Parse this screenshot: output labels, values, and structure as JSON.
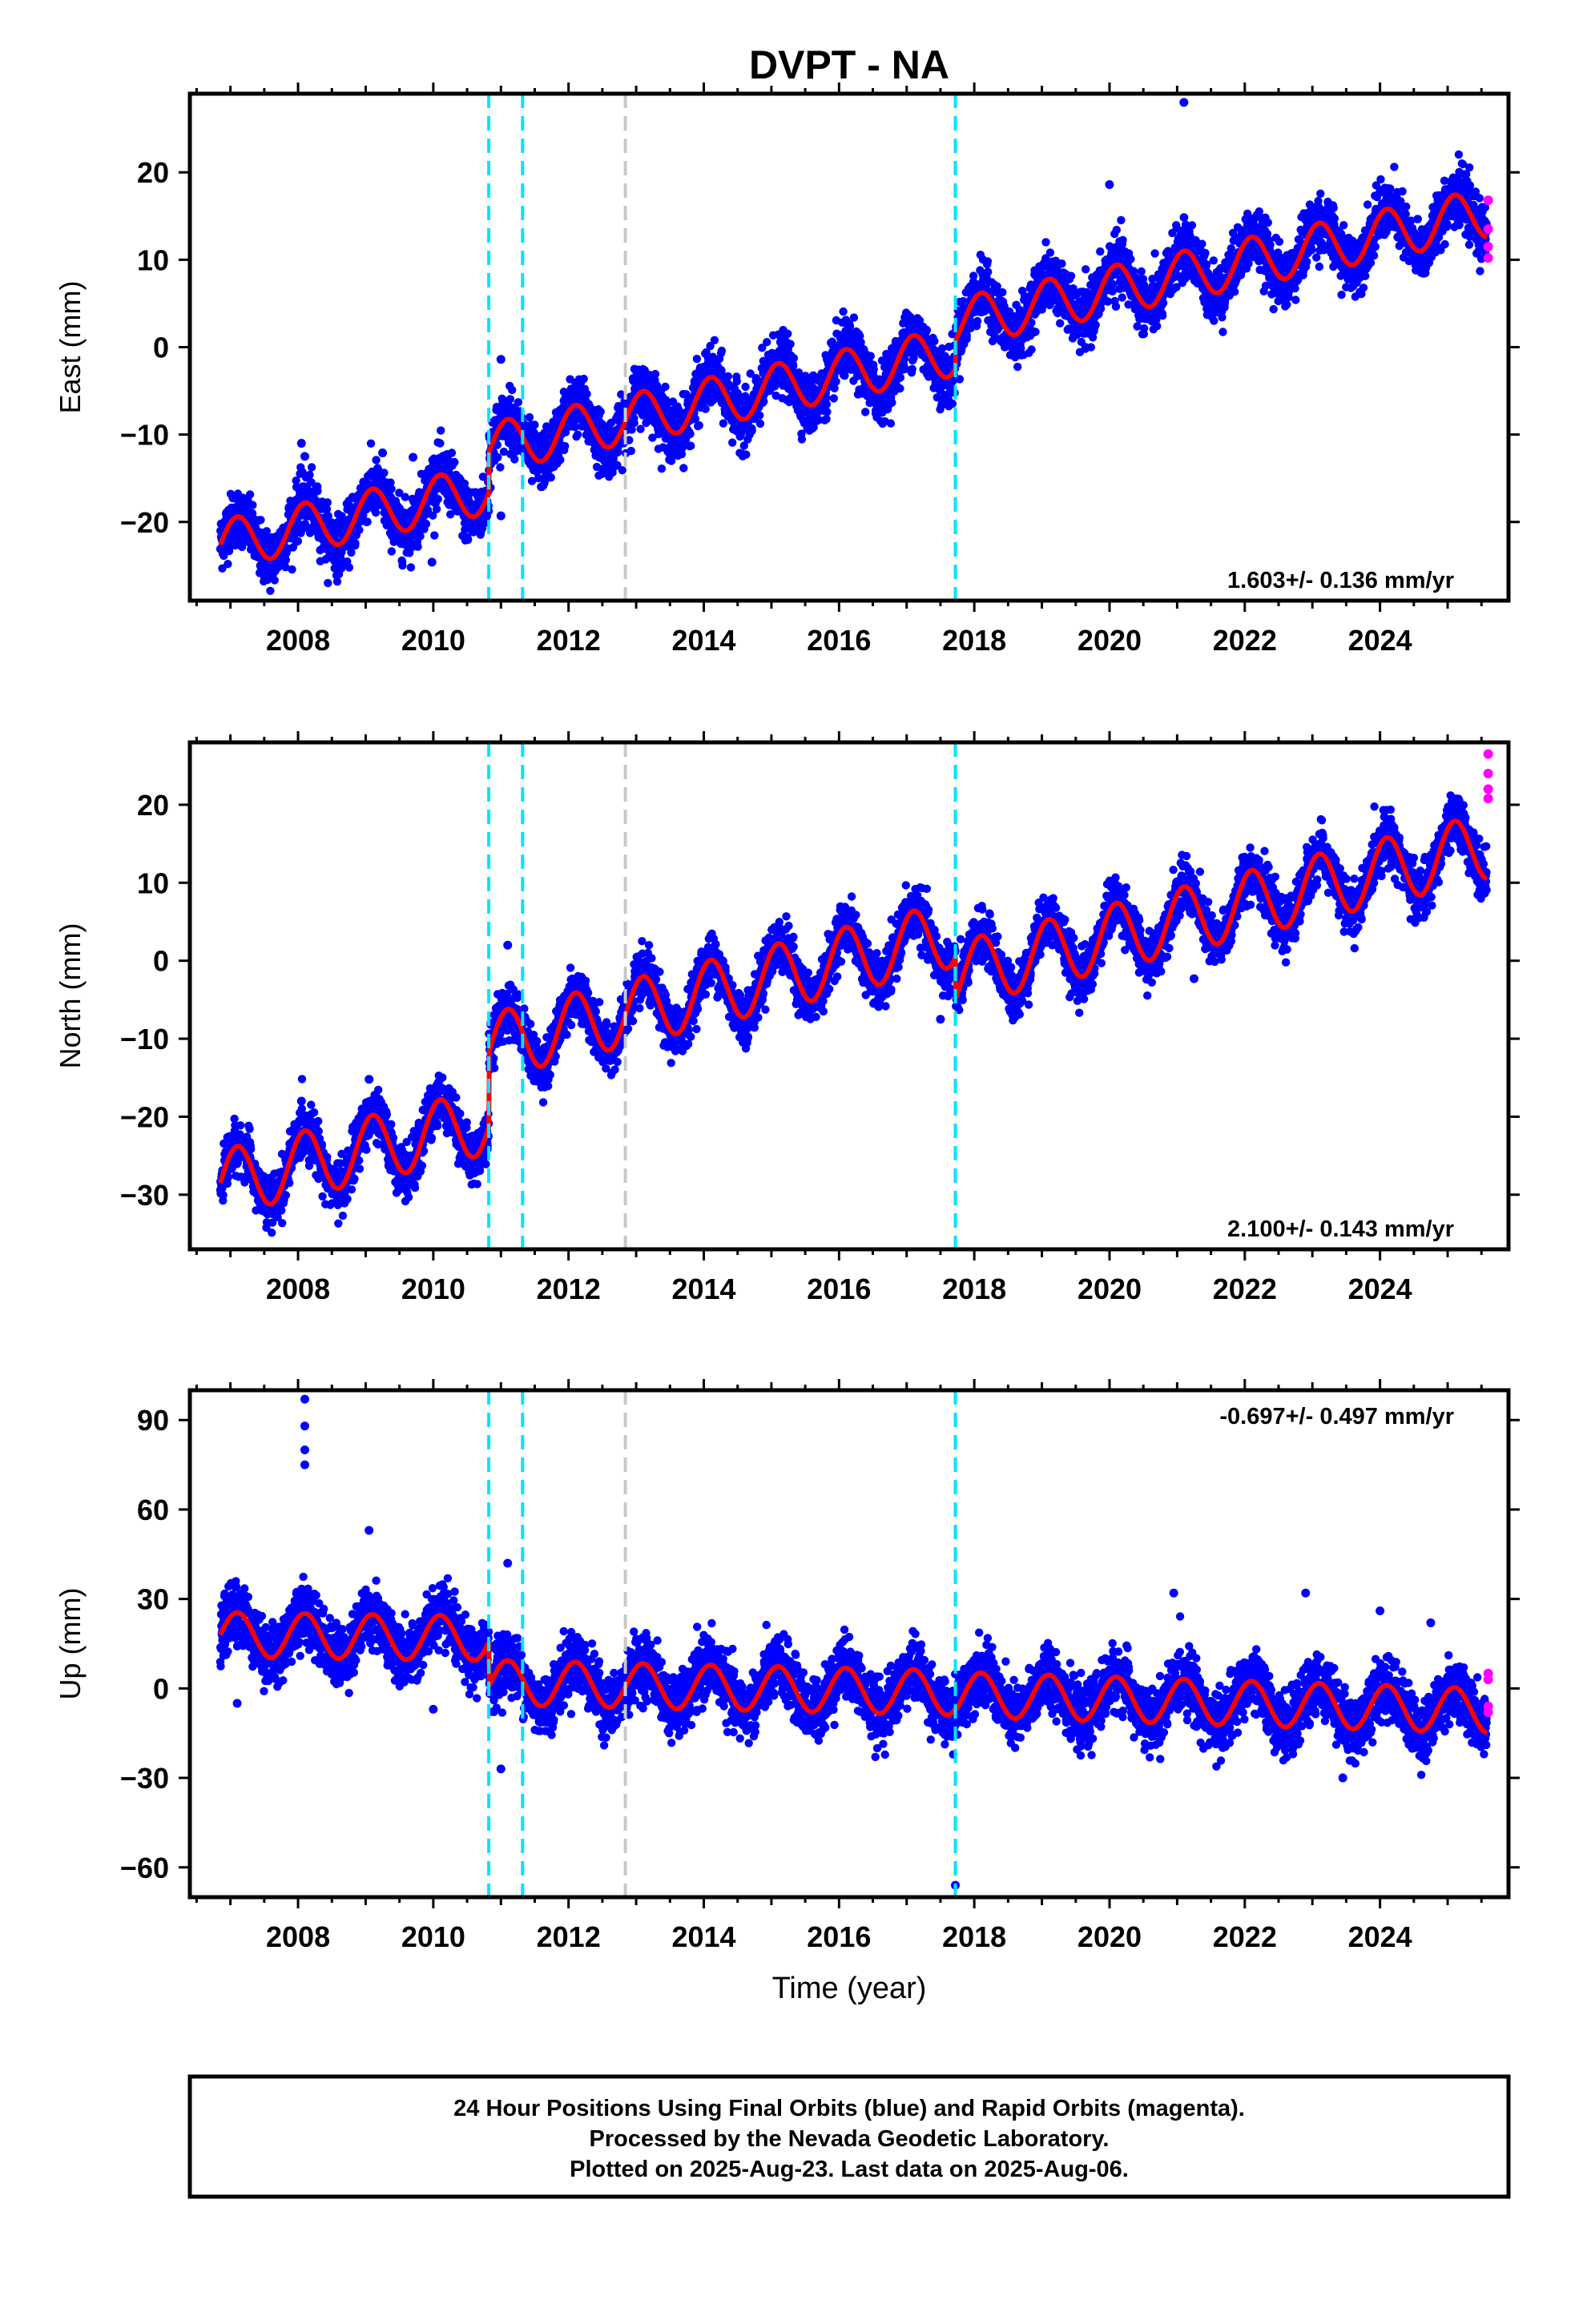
{
  "title": "DVPT - NA",
  "xlabel": "Time (year)",
  "colors": {
    "final_orbits": "#0000ff",
    "rapid_orbits": "#ff00ff",
    "model": "#ff0000",
    "equipment_change": "#00e5ff",
    "earthquake": "#c8c8c8",
    "frame": "#000000"
  },
  "footer": {
    "line1": "24 Hour Positions Using Final Orbits (blue) and Rapid Orbits (magenta).",
    "line2": "Processed by the Nevada Geodetic Laboratory.",
    "line3": "Plotted on 2025-Aug-23. Last data on 2025-Aug-06."
  },
  "chart_data": [
    {
      "type": "scatter",
      "ylabel": "East (mm)",
      "rate_label": "1.603+/- 0.136 mm/yr",
      "rate_position": "bottom-right",
      "xlim": [
        2006.4,
        2025.9
      ],
      "ylim": [
        -29,
        29
      ],
      "xticks": [
        2008,
        2010,
        2012,
        2014,
        2016,
        2018,
        2020,
        2022,
        2024
      ],
      "yticks": [
        -20,
        -10,
        0,
        10,
        20
      ],
      "xtick_labels": [
        "2008",
        "2010",
        "2012",
        "2014",
        "2016",
        "2018",
        "2020",
        "2022",
        "2024"
      ],
      "ytick_labels": [
        "−20",
        "−10",
        "0",
        "10",
        "20"
      ],
      "vlines_cyan": [
        2010.82,
        2011.32,
        2017.72
      ],
      "vlines_gray": [
        2012.84
      ],
      "model": {
        "steps": [
          {
            "t": 2010.82,
            "dy": 9.0
          },
          {
            "t": 2011.32,
            "dy": 0.0
          }
        ],
        "seasonal_amp": 2.8,
        "segments": [
          {
            "t0": 2006.85,
            "y0": -22.6,
            "rate": 1.6
          },
          {
            "t0": 2010.82,
            "y0": -11.5,
            "rate": 1.6
          },
          {
            "t0": 2017.72,
            "y0": 2.8,
            "rate": 1.6
          }
        ]
      },
      "final_orbits": {
        "t_start": 2006.85,
        "t_end": 2025.58,
        "noise": 1.6,
        "outliers": [
          [
            2008.05,
            -11.0
          ],
          [
            2008.1,
            -12.5
          ],
          [
            2009.25,
            -12.1
          ],
          [
            2009.7,
            -12.6
          ],
          [
            2009.98,
            -24.6
          ],
          [
            2011.0,
            -1.4
          ],
          [
            2011.0,
            -19.3
          ],
          [
            2020.0,
            18.6
          ],
          [
            2021.1,
            28.0
          ]
        ]
      },
      "rapid_orbits": {
        "points": [
          [
            2025.6,
            16.8
          ],
          [
            2025.6,
            13.5
          ],
          [
            2025.6,
            11.5
          ],
          [
            2025.6,
            10.2
          ]
        ]
      }
    },
    {
      "type": "scatter",
      "ylabel": "North (mm)",
      "rate_label": "2.100+/- 0.143 mm/yr",
      "rate_position": "bottom-right",
      "xlim": [
        2006.4,
        2025.9
      ],
      "ylim": [
        -37,
        28
      ],
      "xticks": [
        2008,
        2010,
        2012,
        2014,
        2016,
        2018,
        2020,
        2022,
        2024
      ],
      "yticks": [
        -30,
        -20,
        -10,
        0,
        10,
        20
      ],
      "xtick_labels": [
        "2008",
        "2010",
        "2012",
        "2014",
        "2016",
        "2018",
        "2020",
        "2022",
        "2024"
      ],
      "ytick_labels": [
        "−30",
        "−20",
        "−10",
        "0",
        "10",
        "20"
      ],
      "vlines_cyan": [
        2010.82,
        2011.32,
        2017.72
      ],
      "vlines_gray": [
        2012.84
      ],
      "model": {
        "seasonal_amp": 4.2,
        "segments": [
          {
            "t0": 2006.85,
            "y0": -28.5,
            "rate": 2.0
          },
          {
            "t0": 2010.82,
            "y0": -11.0,
            "rate": 2.1
          },
          {
            "t0": 2017.72,
            "y0": -1.8,
            "rate": 2.1
          }
        ]
      },
      "final_orbits": {
        "t_start": 2006.85,
        "t_end": 2025.58,
        "noise": 1.6,
        "outliers": [
          [
            2008.05,
            -18.0
          ],
          [
            2009.05,
            -15.2
          ],
          [
            2010.05,
            -16.0
          ],
          [
            2011.1,
            2.0
          ],
          [
            2017.5,
            -7.5
          ],
          [
            2021.25,
            -2.3
          ]
        ]
      },
      "rapid_orbits": {
        "points": [
          [
            2025.6,
            26.5
          ],
          [
            2025.6,
            24.0
          ],
          [
            2025.6,
            22.0
          ],
          [
            2025.6,
            20.8
          ]
        ]
      }
    },
    {
      "type": "scatter",
      "ylabel": "Up (mm)",
      "rate_label": "-0.697+/- 0.497 mm/yr",
      "rate_position": "top-right",
      "xlim": [
        2006.4,
        2025.9
      ],
      "ylim": [
        -70,
        100
      ],
      "xticks": [
        2008,
        2010,
        2012,
        2014,
        2016,
        2018,
        2020,
        2022,
        2024
      ],
      "yticks": [
        -60,
        -30,
        0,
        30,
        60,
        90
      ],
      "xtick_labels": [
        "2008",
        "2010",
        "2012",
        "2014",
        "2016",
        "2018",
        "2020",
        "2022",
        "2024"
      ],
      "ytick_labels": [
        "−60",
        "−30",
        "0",
        "30",
        "60",
        "90"
      ],
      "vlines_cyan": [
        2010.82,
        2011.32,
        2017.72
      ],
      "vlines_gray": [
        2012.84
      ],
      "model": {
        "seasonal_amp": 7.5,
        "segments": [
          {
            "t0": 2006.85,
            "y0": 18.0,
            "rate": -0.3
          },
          {
            "t0": 2010.82,
            "y0": 2.0,
            "rate": -0.5
          },
          {
            "t0": 2017.72,
            "y0": -2.0,
            "rate": -0.7
          }
        ]
      },
      "final_orbits": {
        "t_start": 2006.85,
        "t_end": 2025.58,
        "noise": 5.0,
        "outliers": [
          [
            2008.1,
            97
          ],
          [
            2008.1,
            88
          ],
          [
            2008.1,
            80
          ],
          [
            2008.1,
            75
          ],
          [
            2009.05,
            53
          ],
          [
            2007.1,
            -5
          ],
          [
            2010.0,
            -7
          ],
          [
            2011.1,
            42
          ],
          [
            2011.0,
            -27
          ],
          [
            2017.72,
            -66
          ],
          [
            2020.95,
            32
          ],
          [
            2022.9,
            32
          ],
          [
            2023.45,
            -30
          ],
          [
            2024.0,
            26
          ],
          [
            2024.75,
            22
          ]
        ]
      },
      "rapid_orbits": {
        "points": [
          [
            2025.6,
            5
          ],
          [
            2025.6,
            3
          ],
          [
            2025.6,
            -6
          ],
          [
            2025.6,
            -8
          ]
        ]
      }
    }
  ]
}
